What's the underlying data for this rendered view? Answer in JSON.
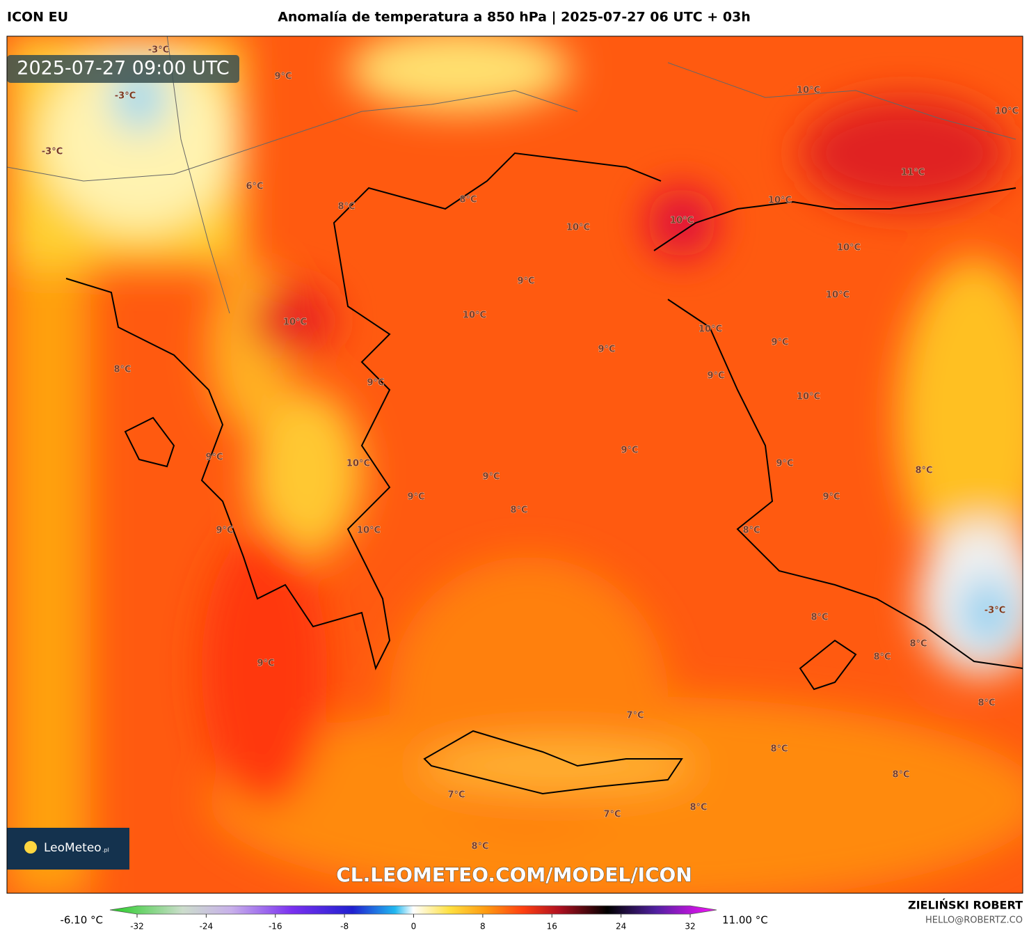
{
  "header": {
    "model": "ICON EU",
    "title": "Anomalía de temperatura a 850 hPa | 2025-07-27 06 UTC + 03h"
  },
  "map": {
    "timestamp": "2025-07-27 09:00 UTC",
    "labels": [
      "-3°C",
      "9°C",
      "-3°C",
      "-3°C",
      "6°C",
      "8°C",
      "8°C",
      "10°C",
      "10°C",
      "10°C",
      "11°C",
      "10°C",
      "10°C",
      "10°C",
      "9°C",
      "10°C",
      "10°C",
      "10°C",
      "10°C",
      "9°C",
      "9°C",
      "8°C",
      "9°C",
      "9°C",
      "10°C",
      "9°C",
      "9°C",
      "10°C",
      "9°C",
      "9°C",
      "8°C",
      "9°C",
      "9°C",
      "8°C",
      "9°C",
      "10°C",
      "8°C",
      "-3°C",
      "8°C",
      "8°C",
      "8°C",
      "9°C",
      "8°C",
      "7°C",
      "8°C",
      "8°C",
      "7°C",
      "7°C",
      "8°C",
      "8°C"
    ],
    "watermark": "CL.LEOMETEO.COM/MODEL/ICON",
    "logo": {
      "name": "LeoMeteo",
      "suffix": ".pl"
    }
  },
  "colorbar": {
    "min_label": "-6.10 °C",
    "max_label": "11.00 °C",
    "range": [
      -32,
      32
    ],
    "ticks": [
      -32,
      -24,
      -16,
      -8,
      0,
      8,
      16,
      24,
      32
    ]
  },
  "credits": {
    "author": "ZIELIŃSKI ROBERT",
    "email": "HELLO@ROBERTZ.CO"
  }
}
